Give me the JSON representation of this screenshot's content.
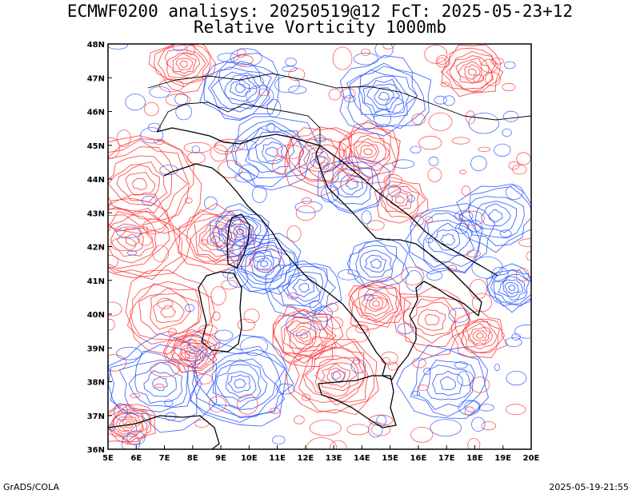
{
  "header": {
    "title_line1": "ECMWF0200 analisys: 20250519@12 FcT: 2025-05-23+12",
    "title_line2": "Relative Vorticity 1000mb"
  },
  "map": {
    "lat_labels": [
      "48N",
      "47N",
      "46N",
      "45N",
      "44N",
      "43N",
      "42N",
      "41N",
      "40N",
      "39N",
      "38N",
      "37N",
      "36N"
    ],
    "lon_labels": [
      "5E",
      "6E",
      "7E",
      "8E",
      "9E",
      "10E",
      "11E",
      "12E",
      "13E",
      "14E",
      "15E",
      "16E",
      "17E",
      "18E",
      "19E",
      "20E"
    ],
    "lat_range": [
      36,
      48
    ],
    "lon_range": [
      5,
      20
    ],
    "colors": {
      "positive": "#ff3030",
      "negative": "#2050ff",
      "coast": "#000000",
      "zero": "#b090b0"
    }
  },
  "footer": {
    "left": "GrADS/COLA",
    "right": "2025-05-19-21:55"
  }
}
